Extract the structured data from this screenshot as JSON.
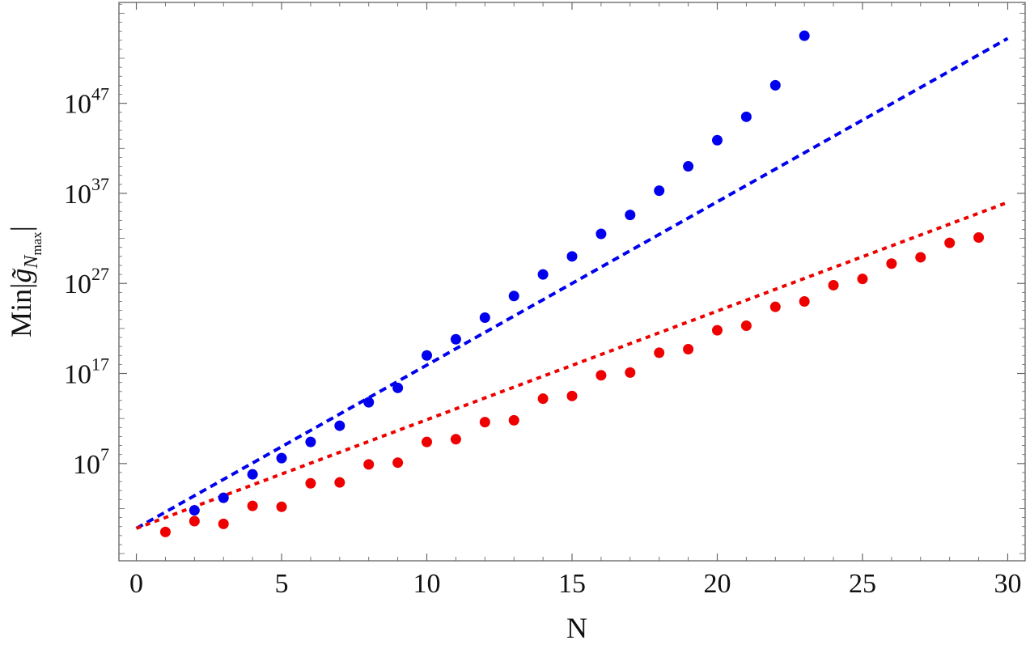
{
  "chart_data": {
    "type": "scatter",
    "title": "",
    "xlabel": "N",
    "ylabel": {
      "main": "Min|",
      "symbol": "g̃",
      "sub": "N",
      "subsub": "max",
      "close": "|"
    },
    "y_scale": "log10",
    "xlim": [
      -0.6,
      30.6
    ],
    "ylim_log10": [
      -3.8,
      58.2
    ],
    "x_ticks": [
      0,
      5,
      10,
      15,
      20,
      25,
      30
    ],
    "y_ticks": [
      {
        "base": "10",
        "exp": "7",
        "log10": 7
      },
      {
        "base": "10",
        "exp": "17",
        "log10": 17
      },
      {
        "base": "10",
        "exp": "27",
        "log10": 27
      },
      {
        "base": "10",
        "exp": "37",
        "log10": 37
      },
      {
        "base": "10",
        "exp": "47",
        "log10": 47
      }
    ],
    "grid": false,
    "frame": true,
    "series": [
      {
        "color": "#0000ee",
        "kind": "points",
        "x": [
          2,
          3,
          4,
          5,
          6,
          7,
          8,
          9,
          10,
          11,
          12,
          13,
          14,
          15,
          16,
          17,
          18,
          19,
          20,
          21,
          22,
          23
        ],
        "log10_y": [
          1.8,
          3.2,
          5.8,
          7.6,
          9.4,
          11.2,
          13.8,
          15.4,
          19.0,
          20.8,
          23.2,
          25.6,
          28.0,
          30.0,
          32.5,
          34.6,
          37.3,
          40.0,
          42.9,
          45.5,
          49.0,
          54.5
        ]
      },
      {
        "color": "#ee0000",
        "kind": "points",
        "x": [
          1,
          2,
          3,
          4,
          5,
          6,
          7,
          8,
          9,
          10,
          11,
          12,
          13,
          14,
          15,
          16,
          17,
          18,
          19,
          20,
          21,
          22,
          23,
          24,
          25,
          26,
          27,
          28,
          29
        ],
        "log10_y": [
          -0.6,
          0.6,
          0.3,
          2.3,
          2.2,
          4.8,
          4.9,
          6.9,
          7.1,
          9.4,
          9.7,
          11.6,
          11.8,
          14.2,
          14.5,
          16.8,
          17.1,
          19.3,
          19.7,
          21.8,
          22.3,
          24.4,
          25.0,
          26.8,
          27.5,
          29.2,
          29.9,
          31.5,
          32.1
        ]
      },
      {
        "color": "#0000ee",
        "kind": "dashed-line",
        "x": [
          0,
          30
        ],
        "log10_y": [
          -0.2,
          54.2
        ]
      },
      {
        "color": "#ee0000",
        "kind": "dotted-line",
        "x": [
          0,
          30
        ],
        "log10_y": [
          -0.2,
          36.0
        ]
      }
    ]
  }
}
